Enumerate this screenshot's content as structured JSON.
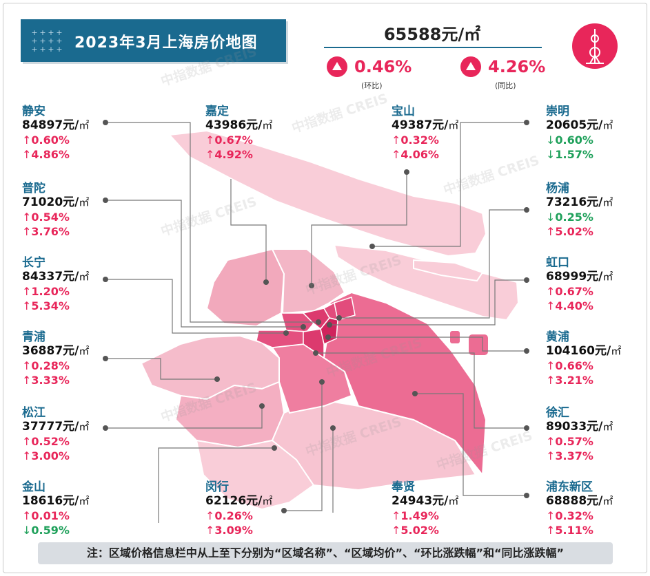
{
  "header": {
    "title": "2023年3月上海房价地图",
    "avg_price": "65588元/㎡",
    "mom": {
      "pct": "0.46%",
      "caption": "(环比)"
    },
    "yoy": {
      "pct": "4.26%",
      "caption": "(同比)"
    }
  },
  "logo": {
    "icon": "oriental-pearl-tower-icon",
    "color": "#e8265a"
  },
  "watermark": "中指数据 CREIS",
  "colors": {
    "up": "#e8265a",
    "down": "#1ea05a",
    "title_bg": "#1a6a8f"
  },
  "districts": [
    {
      "name": "静安",
      "price": "84897元/",
      "unit": "㎡",
      "mom": "0.60%",
      "mom_dir": "up",
      "yoy": "4.86%",
      "yoy_dir": "up"
    },
    {
      "name": "普陀",
      "price": "71020元/",
      "unit": "㎡",
      "mom": "0.54%",
      "mom_dir": "up",
      "yoy": "3.76%",
      "yoy_dir": "up"
    },
    {
      "name": "长宁",
      "price": "84337元/",
      "unit": "㎡",
      "mom": "1.20%",
      "mom_dir": "up",
      "yoy": "5.34%",
      "yoy_dir": "up"
    },
    {
      "name": "青浦",
      "price": "36887元/",
      "unit": "㎡",
      "mom": "0.28%",
      "mom_dir": "up",
      "yoy": "3.33%",
      "yoy_dir": "up"
    },
    {
      "name": "松江",
      "price": "37777元/",
      "unit": "㎡",
      "mom": "0.52%",
      "mom_dir": "up",
      "yoy": "3.00%",
      "yoy_dir": "up"
    },
    {
      "name": "金山",
      "price": "18616元/",
      "unit": "㎡",
      "mom": "0.01%",
      "mom_dir": "up",
      "yoy": "0.59%",
      "yoy_dir": "down"
    },
    {
      "name": "嘉定",
      "price": "43986元/",
      "unit": "㎡",
      "mom": "0.67%",
      "mom_dir": "up",
      "yoy": "4.92%",
      "yoy_dir": "up"
    },
    {
      "name": "闵行",
      "price": "62126元/",
      "unit": "㎡",
      "mom": "0.26%",
      "mom_dir": "up",
      "yoy": "3.09%",
      "yoy_dir": "up"
    },
    {
      "name": "宝山",
      "price": "49387元/",
      "unit": "㎡",
      "mom": "0.32%",
      "mom_dir": "up",
      "yoy": "4.06%",
      "yoy_dir": "up"
    },
    {
      "name": "奉贤",
      "price": "24943元/",
      "unit": "㎡",
      "mom": "1.49%",
      "mom_dir": "up",
      "yoy": "5.02%",
      "yoy_dir": "up"
    },
    {
      "name": "崇明",
      "price": "20605元/",
      "unit": "㎡",
      "mom": "0.60%",
      "mom_dir": "down",
      "yoy": "1.57%",
      "yoy_dir": "down"
    },
    {
      "name": "杨浦",
      "price": "73216元/",
      "unit": "㎡",
      "mom": "0.25%",
      "mom_dir": "down",
      "yoy": "5.02%",
      "yoy_dir": "up"
    },
    {
      "name": "虹口",
      "price": "68999元/",
      "unit": "㎡",
      "mom": "0.67%",
      "mom_dir": "up",
      "yoy": "4.40%",
      "yoy_dir": "up"
    },
    {
      "name": "黄浦",
      "price": "104160元/",
      "unit": "㎡",
      "mom": "0.66%",
      "mom_dir": "up",
      "yoy": "3.21%",
      "yoy_dir": "up"
    },
    {
      "name": "徐汇",
      "price": "89033元/",
      "unit": "㎡",
      "mom": "0.57%",
      "mom_dir": "up",
      "yoy": "3.37%",
      "yoy_dir": "up"
    },
    {
      "name": "浦东新区",
      "price": "68888元/",
      "unit": "㎡",
      "mom": "0.32%",
      "mom_dir": "up",
      "yoy": "5.11%",
      "yoy_dir": "up"
    }
  ],
  "note": "注：区域价格信息栏中从上至下分别为“区域名称”、“区域均价”、“环比涨跌幅”和“同比涨跌幅”"
}
